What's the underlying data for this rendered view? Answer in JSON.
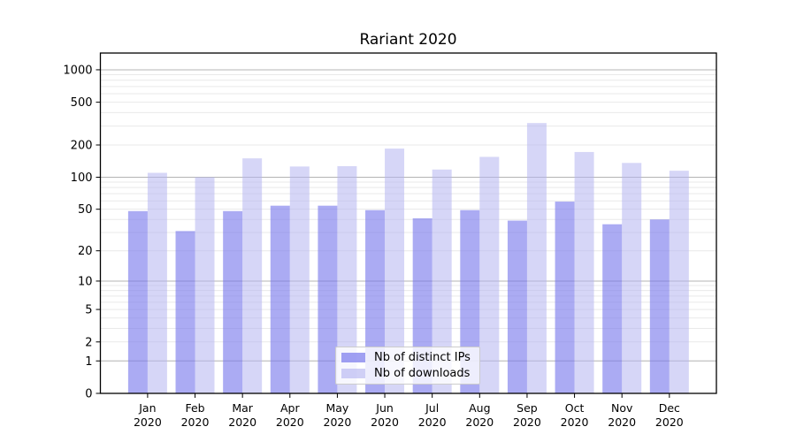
{
  "chart_data": {
    "type": "bar",
    "title": "Rariant 2020",
    "categories": [
      "Jan",
      "Feb",
      "Mar",
      "Apr",
      "May",
      "Jun",
      "Jul",
      "Aug",
      "Sep",
      "Oct",
      "Nov",
      "Dec"
    ],
    "year_label": "2020",
    "series": [
      {
        "name": "Nb of distinct IPs",
        "color": "#7878ec",
        "fill_opacity": 0.62,
        "values": [
          48,
          31,
          48,
          54,
          54,
          49,
          41,
          49,
          39,
          59,
          36,
          40
        ]
      },
      {
        "name": "Nb of downloads",
        "color": "#b4b4f0",
        "fill_opacity": 0.55,
        "values": [
          110,
          100,
          150,
          126,
          127,
          185,
          118,
          155,
          320,
          172,
          136,
          115
        ]
      }
    ],
    "xlabel": "",
    "ylabel": "",
    "y_axis": {
      "scale": "log10(v+1)",
      "ticks": [
        0,
        1,
        2,
        5,
        10,
        20,
        50,
        100,
        200,
        500,
        1000
      ],
      "max": 1430
    },
    "grid": {
      "major_color": "#b4b4b4",
      "minor_color": "#e9e9e9",
      "major_at": [
        1,
        10,
        100,
        1000
      ]
    },
    "legend_position": "bottom-center",
    "axis_color": "#000000",
    "background_color": "#ffffff"
  }
}
